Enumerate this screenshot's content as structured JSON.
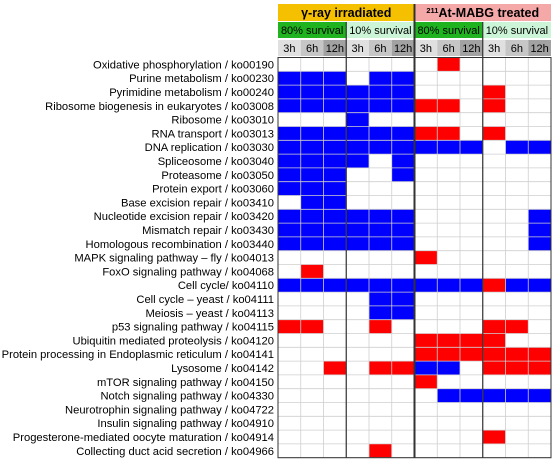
{
  "chart_data": {
    "type": "heatmap",
    "group_headers": [
      {
        "label": "γ-ray irradiated",
        "color": "#f5c000"
      },
      {
        "label_sup": "211",
        "label": "At-MABG treated",
        "color": "#f4a8a8"
      }
    ],
    "survival_headers": [
      {
        "label": "80% survival",
        "color": "#1fb31f"
      },
      {
        "label": "10% survival",
        "color": "#ccf5d7"
      },
      {
        "label": "80% survival",
        "color": "#1fb31f"
      },
      {
        "label": "10% survival",
        "color": "#ccf5d7"
      }
    ],
    "time_labels": [
      "3h",
      "6h",
      "12h",
      "3h",
      "6h",
      "12h",
      "3h",
      "6h",
      "12h",
      "3h",
      "6h",
      "12h"
    ],
    "time_colors": [
      "#e0e0e0",
      "#c6c6c6",
      "#a2a2a2"
    ],
    "legend_colors": {
      "up": "#ff0000",
      "down": "#0000ff",
      "none": "#ffffff"
    },
    "pathways": [
      "Oxidative phosphorylation / ko00190",
      "Purine metabolism / ko00230",
      "Pyrimidine metabolism / ko00240",
      "Ribosome biogenesis in eukaryotes / ko03008",
      "Ribosome / ko03010",
      "RNA transport / ko03013",
      "DNA replication / ko03030",
      "Spliceosome / ko03040",
      "Proteasome / ko03050",
      "Protein export / ko03060",
      "Base excision repair / ko03410",
      "Nucleotide excision repair / ko03420",
      "Mismatch repair / ko03430",
      "Homologous recombination / ko03440",
      "MAPK signaling pathway – fly / ko04013",
      "FoxO signaling pathway / ko04068",
      "Cell cycle/ ko04110",
      "Cell cycle – yeast / ko04111",
      "Meiosis – yeast / ko04113",
      "p53 signaling pathway / ko04115",
      "Ubiquitin mediated proteolysis / ko04120",
      "Protein processing in Endoplasmic reticulum / ko04141",
      "Lysosome / ko04142",
      "mTOR signaling pathway / ko04150",
      "Notch signaling pathway / ko04330",
      "Neurotrophin signaling pathway / ko04722",
      "Insulin signaling pathway / ko04910",
      "Progesterone-mediated oocyte maturation / ko04914",
      "Collecting duct acid secretion / ko04966"
    ],
    "values": [
      [
        0,
        0,
        0,
        0,
        0,
        0,
        0,
        1,
        0,
        0,
        0,
        0
      ],
      [
        -1,
        -1,
        -1,
        0,
        -1,
        -1,
        0,
        0,
        0,
        0,
        0,
        0
      ],
      [
        -1,
        -1,
        -1,
        -1,
        -1,
        -1,
        0,
        0,
        0,
        1,
        0,
        0
      ],
      [
        -1,
        -1,
        -1,
        -1,
        -1,
        -1,
        1,
        1,
        0,
        1,
        0,
        0
      ],
      [
        0,
        0,
        0,
        -1,
        0,
        0,
        0,
        0,
        0,
        0,
        0,
        0
      ],
      [
        -1,
        -1,
        -1,
        -1,
        -1,
        -1,
        1,
        1,
        0,
        1,
        0,
        0
      ],
      [
        -1,
        -1,
        -1,
        -1,
        -1,
        -1,
        -1,
        -1,
        -1,
        0,
        -1,
        -1
      ],
      [
        -1,
        -1,
        -1,
        -1,
        0,
        -1,
        0,
        0,
        0,
        0,
        0,
        0
      ],
      [
        -1,
        -1,
        -1,
        0,
        0,
        -1,
        0,
        0,
        0,
        0,
        0,
        0
      ],
      [
        -1,
        -1,
        -1,
        0,
        0,
        0,
        0,
        0,
        0,
        0,
        0,
        0
      ],
      [
        0,
        -1,
        -1,
        0,
        0,
        0,
        0,
        0,
        0,
        0,
        0,
        0
      ],
      [
        -1,
        -1,
        -1,
        -1,
        -1,
        -1,
        0,
        0,
        0,
        0,
        0,
        -1
      ],
      [
        -1,
        -1,
        -1,
        -1,
        -1,
        -1,
        0,
        0,
        0,
        0,
        0,
        -1
      ],
      [
        -1,
        -1,
        -1,
        -1,
        -1,
        -1,
        0,
        0,
        0,
        0,
        0,
        -1
      ],
      [
        0,
        0,
        0,
        0,
        0,
        0,
        1,
        0,
        0,
        0,
        0,
        0
      ],
      [
        0,
        1,
        0,
        0,
        0,
        0,
        0,
        0,
        0,
        0,
        0,
        0
      ],
      [
        -1,
        -1,
        -1,
        -1,
        -1,
        -1,
        -1,
        -1,
        -1,
        1,
        -1,
        -1
      ],
      [
        0,
        0,
        0,
        0,
        -1,
        -1,
        0,
        0,
        0,
        0,
        0,
        0
      ],
      [
        0,
        0,
        0,
        0,
        -1,
        -1,
        0,
        0,
        0,
        0,
        0,
        0
      ],
      [
        1,
        1,
        0,
        0,
        1,
        0,
        0,
        0,
        0,
        1,
        1,
        0
      ],
      [
        0,
        0,
        0,
        0,
        0,
        0,
        1,
        1,
        1,
        1,
        0,
        0
      ],
      [
        0,
        0,
        0,
        0,
        0,
        0,
        1,
        1,
        1,
        1,
        1,
        1
      ],
      [
        0,
        0,
        1,
        0,
        1,
        1,
        -1,
        -1,
        0,
        1,
        1,
        1
      ],
      [
        0,
        0,
        0,
        0,
        0,
        0,
        1,
        0,
        0,
        0,
        0,
        0
      ],
      [
        0,
        0,
        0,
        0,
        0,
        0,
        0,
        -1,
        -1,
        -1,
        -1,
        -1
      ],
      [
        0,
        0,
        0,
        0,
        0,
        0,
        0,
        0,
        0,
        0,
        0,
        0
      ],
      [
        0,
        0,
        0,
        0,
        0,
        0,
        0,
        0,
        0,
        0,
        0,
        0
      ],
      [
        0,
        0,
        0,
        0,
        0,
        0,
        0,
        0,
        0,
        1,
        0,
        0
      ],
      [
        0,
        0,
        0,
        0,
        1,
        0,
        0,
        0,
        0,
        0,
        0,
        0
      ]
    ]
  }
}
